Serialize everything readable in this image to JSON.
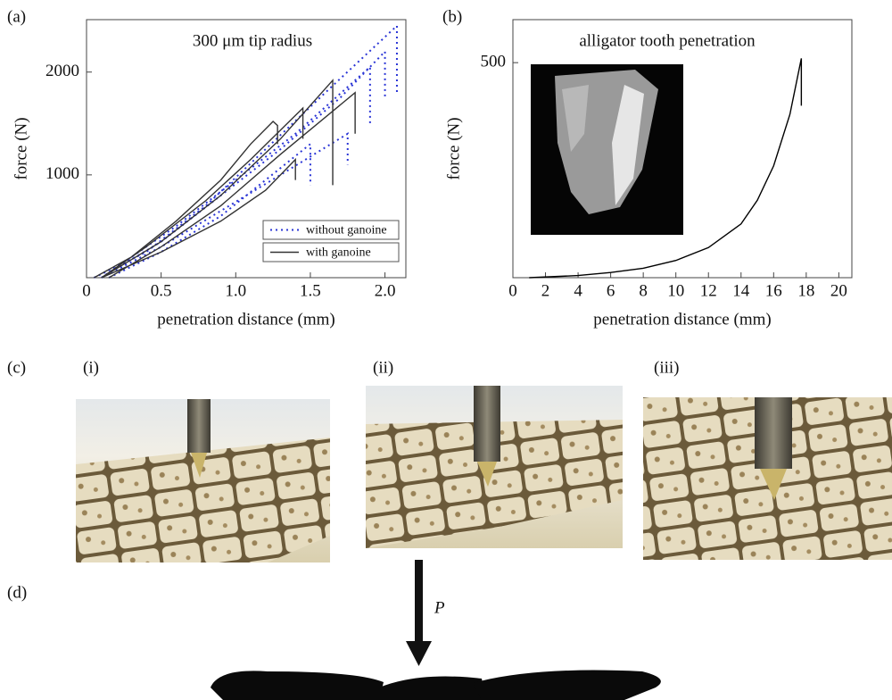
{
  "figure": {
    "labels": [
      "(a)",
      "(b)",
      "(c)",
      "(d)"
    ],
    "sub_labels": [
      "(i)",
      "(ii)",
      "(iii)"
    ],
    "load_label": "P"
  },
  "chart_data": [
    {
      "type": "line",
      "title": "300 μm tip radius",
      "x_label": "penetration distance (mm)",
      "y_label": "force (N)",
      "xlim": [
        0,
        2.14
      ],
      "ylim": [
        0,
        2510
      ],
      "xticks": [
        0,
        0.5,
        {
          "value": 1,
          "label": "1.0"
        },
        1.5,
        {
          "value": 2,
          "label": "2.0"
        }
      ],
      "yticks": [
        1000,
        2000
      ],
      "legend": "lower right",
      "series": [
        {
          "name": "without ganoine",
          "color": "#2a35d6",
          "style": "dotted",
          "x": [
            0.05,
            0.4,
            0.8,
            1.2,
            1.6,
            2.08,
            2.08,
            null,
            0.1,
            0.5,
            0.9,
            1.3,
            1.7,
            2.0,
            2.0,
            null,
            0.1,
            0.5,
            0.9,
            1.3,
            1.75,
            1.75,
            null,
            0.15,
            0.5,
            0.9,
            1.2,
            1.5,
            1.5,
            null,
            0.1,
            0.6,
            1.0,
            1.4,
            1.9,
            1.9
          ],
          "values": [
            0,
            250,
            700,
            1250,
            1800,
            2450,
            1800,
            null,
            0,
            350,
            800,
            1250,
            1750,
            2200,
            1750,
            null,
            0,
            300,
            650,
            1000,
            1400,
            1100,
            null,
            0,
            250,
            600,
            950,
            1300,
            900,
            null,
            0,
            500,
            950,
            1400,
            2050,
            1500
          ]
        },
        {
          "name": "with ganoine",
          "color": "#333333",
          "style": "solid",
          "x": [
            0.05,
            0.3,
            0.6,
            0.9,
            1.1,
            1.25,
            1.28,
            1.28,
            null,
            0.1,
            0.4,
            0.8,
            1.1,
            1.45,
            1.45,
            null,
            0.1,
            0.5,
            0.9,
            1.3,
            1.65,
            1.65,
            null,
            0.15,
            0.5,
            0.9,
            1.3,
            1.8,
            1.8,
            null,
            0.1,
            0.5,
            0.9,
            1.2,
            1.4,
            1.4
          ],
          "values": [
            0,
            200,
            550,
            950,
            1300,
            1520,
            1480,
            1300,
            null,
            0,
            300,
            750,
            1150,
            1650,
            1350,
            null,
            0,
            350,
            800,
            1350,
            1920,
            900,
            null,
            0,
            300,
            700,
            1200,
            1800,
            1400,
            null,
            0,
            250,
            550,
            850,
            1150,
            950
          ]
        }
      ]
    },
    {
      "type": "line",
      "title": "alligator tooth penetration",
      "x_label": "penetration distance (mm)",
      "y_label": "force (N)",
      "xlim": [
        0,
        20.8
      ],
      "ylim": [
        0,
        600
      ],
      "xticks": [
        0,
        2,
        4,
        6,
        8,
        10,
        12,
        14,
        16,
        18,
        20
      ],
      "yticks": [
        500
      ],
      "series": [
        {
          "color": "#000000",
          "style": "solid",
          "x": [
            1,
            4,
            6,
            8,
            10,
            12,
            14,
            15,
            16,
            17,
            17.7,
            17.7
          ],
          "values": [
            0,
            5,
            12,
            22,
            40,
            70,
            125,
            180,
            260,
            380,
            510,
            400
          ]
        }
      ]
    }
  ]
}
